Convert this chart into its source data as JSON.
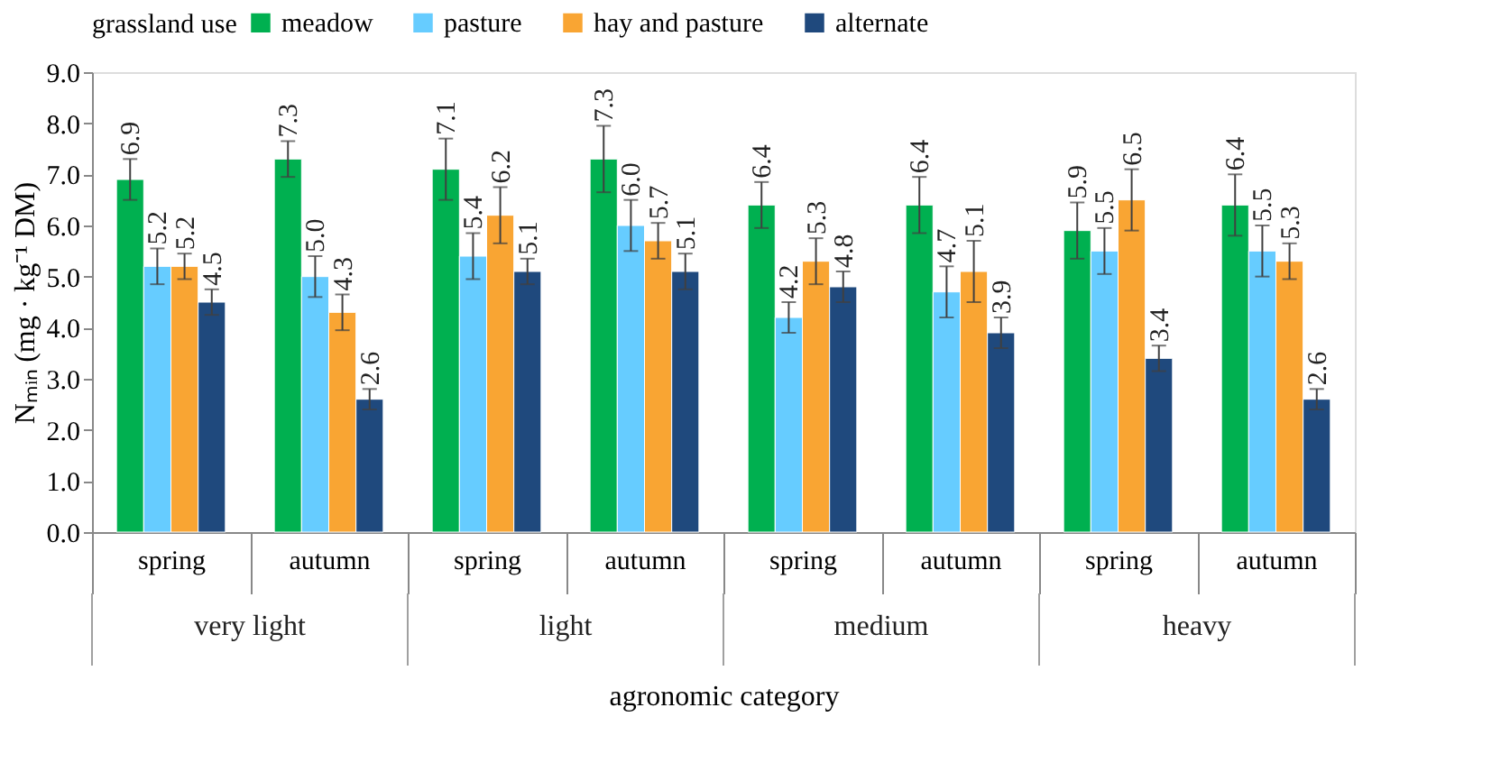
{
  "chart_data": {
    "type": "bar",
    "ylabel": "Nₘᵢₙ (mg · kg⁻¹ DM)",
    "xlabel": "agronomic category",
    "legend_title": "grassland use",
    "legend": "top",
    "categories": [
      "spring",
      "autumn",
      "spring",
      "autumn",
      "spring",
      "autumn",
      "spring",
      "autumn"
    ],
    "annotations": [
      "very light",
      "light",
      "medium",
      "heavy"
    ],
    "series": [
      {
        "name": "meadow",
        "color": "#00b050",
        "values": [
          6.9,
          7.3,
          7.1,
          7.3,
          6.4,
          6.4,
          5.9,
          6.4
        ],
        "value_labels": [
          "6.9",
          "7.3",
          "7.1",
          "7.3",
          "6.4",
          "6.4",
          "5.9",
          "6.4"
        ],
        "errors": [
          0.4,
          0.35,
          0.6,
          0.65,
          0.45,
          0.55,
          0.55,
          0.6
        ]
      },
      {
        "name": "pasture",
        "color": "#66ccff",
        "values": [
          5.2,
          5.0,
          5.4,
          6.0,
          4.2,
          4.7,
          5.5,
          5.5
        ],
        "value_labels": [
          "5.2",
          "5.0",
          "5.4",
          "6.0",
          "4.2",
          "4.7",
          "5.5",
          "5.5"
        ],
        "errors": [
          0.35,
          0.4,
          0.45,
          0.5,
          0.3,
          0.5,
          0.45,
          0.5
        ]
      },
      {
        "name": "hay and pasture",
        "color": "#f9a533",
        "values": [
          5.2,
          4.3,
          6.2,
          5.7,
          5.3,
          5.1,
          6.5,
          5.3
        ],
        "value_labels": [
          "5.2",
          "4.3",
          "6.2",
          "5.7",
          "5.3",
          "5.1",
          "6.5",
          "5.3"
        ],
        "errors": [
          0.25,
          0.35,
          0.55,
          0.35,
          0.45,
          0.6,
          0.6,
          0.35
        ]
      },
      {
        "name": "alternate",
        "color": "#1f497d",
        "values": [
          4.5,
          2.6,
          5.1,
          5.1,
          4.8,
          3.9,
          3.4,
          2.6
        ],
        "value_labels": [
          "4.5",
          "2.6",
          "5.1",
          "5.1",
          "4.8",
          "3.9",
          "3.4",
          "2.6"
        ],
        "errors": [
          0.25,
          0.2,
          0.25,
          0.35,
          0.3,
          0.3,
          0.25,
          0.2
        ]
      }
    ],
    "ylim": [
      0,
      9
    ],
    "yticks": [
      {
        "value": 0,
        "label": "0.0"
      },
      {
        "value": 1,
        "label": "1.0"
      },
      {
        "value": 2,
        "label": "2.0"
      },
      {
        "value": 3,
        "label": "3.0"
      },
      {
        "value": 4,
        "label": "4.0"
      },
      {
        "value": 5,
        "label": "5.0"
      },
      {
        "value": 6,
        "label": "6.0"
      },
      {
        "value": 7,
        "label": "7.0"
      },
      {
        "value": 8,
        "label": "8.0"
      },
      {
        "value": 9,
        "label": "9.0"
      }
    ],
    "grid": false
  }
}
